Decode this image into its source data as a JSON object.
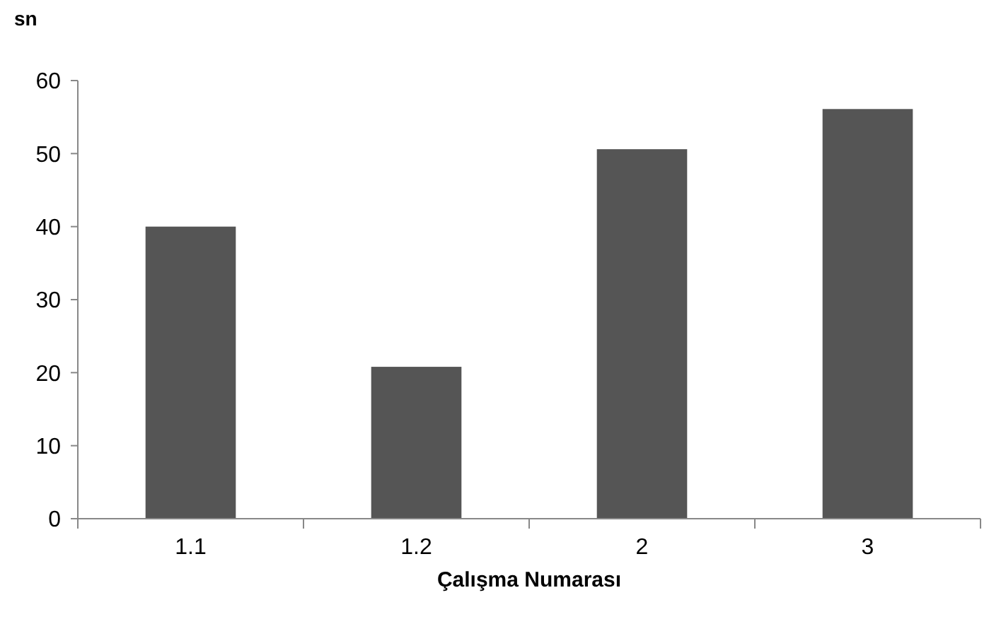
{
  "chart_data": {
    "type": "bar",
    "ylabel": "sn",
    "xlabel": "Çalışma Numarası",
    "categories": [
      "1.1",
      "1.2",
      "2",
      "3"
    ],
    "values": [
      40,
      20.8,
      50.6,
      56.1
    ],
    "color": "#555555",
    "ylim": [
      0,
      60
    ],
    "yticks": [
      0,
      10,
      20,
      30,
      40,
      50,
      60
    ],
    "grid": false
  }
}
